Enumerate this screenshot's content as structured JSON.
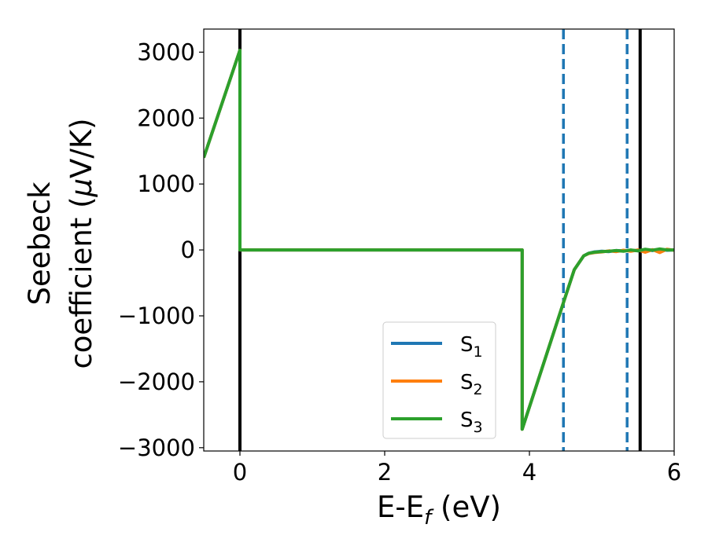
{
  "chart_data": {
    "type": "line",
    "xlabel": "E-E",
    "xlabel_sub": "f",
    "xlabel_unit": " (eV)",
    "ylabel_line1": "Seebeck",
    "ylabel_line2": "coefficient  (",
    "ylabel_mu": "μ",
    "ylabel_unit": "V/K)",
    "xlim": [
      -0.5,
      6
    ],
    "ylim": [
      -3050,
      3350
    ],
    "xticks": [
      0,
      2,
      4,
      6
    ],
    "xtick_labels": [
      "0",
      "2",
      "4",
      "6"
    ],
    "yticks": [
      -3000,
      -2000,
      -1000,
      0,
      1000,
      2000,
      3000
    ],
    "ytick_labels": [
      "−3000",
      "−2000",
      "−1000",
      "0",
      "1000",
      "2000",
      "3000"
    ],
    "legend_position": "lower-center",
    "grid": false,
    "series": [
      {
        "name": "S",
        "sub": "1",
        "color": "#1f77b4",
        "x": [
          -0.5,
          0.0,
          0.0,
          3.9,
          3.9,
          4.47,
          4.62,
          4.75,
          4.82,
          4.9,
          5.0,
          5.1,
          5.2,
          5.3,
          5.4,
          5.5,
          5.6,
          5.7,
          5.8,
          5.9,
          6.0
        ],
        "y": [
          1400,
          3030,
          0,
          0,
          -2720,
          -800,
          -300,
          -90,
          -50,
          -30,
          -20,
          -25,
          -10,
          -15,
          -5,
          -12,
          5,
          -10,
          10,
          -5,
          0
        ]
      },
      {
        "name": "S",
        "sub": "2",
        "color": "#ff7f0e",
        "x": [
          -0.5,
          0.0,
          0.0,
          3.9,
          3.9,
          4.47,
          4.62,
          4.75,
          4.82,
          4.9,
          5.0,
          5.1,
          5.2,
          5.3,
          5.4,
          5.5,
          5.6,
          5.7,
          5.8,
          5.9,
          6.0
        ],
        "y": [
          1400,
          3030,
          0,
          0,
          -2720,
          -800,
          -300,
          -90,
          -55,
          -40,
          -30,
          -15,
          -25,
          -5,
          -20,
          0,
          -35,
          5,
          -40,
          10,
          -5
        ]
      },
      {
        "name": "S",
        "sub": "3",
        "color": "#2ca02c",
        "x": [
          -0.5,
          0.0,
          0.0,
          3.9,
          3.9,
          4.47,
          4.62,
          4.75,
          4.82,
          4.9,
          5.0,
          5.1,
          5.2,
          5.3,
          5.4,
          5.5,
          5.6,
          5.7,
          5.8,
          5.9,
          6.0
        ],
        "y": [
          1400,
          3030,
          0,
          0,
          -2720,
          -800,
          -300,
          -90,
          -50,
          -35,
          -25,
          -20,
          -10,
          -20,
          0,
          -15,
          10,
          -5,
          15,
          0,
          0
        ]
      }
    ],
    "vlines": [
      {
        "x": 0.0,
        "color": "#000000",
        "style": "solid"
      },
      {
        "x": 5.53,
        "color": "#000000",
        "style": "solid"
      },
      {
        "x": 4.47,
        "color": "#1f77b4",
        "style": "dashed"
      },
      {
        "x": 5.35,
        "color": "#1f77b4",
        "style": "dashed"
      }
    ]
  }
}
